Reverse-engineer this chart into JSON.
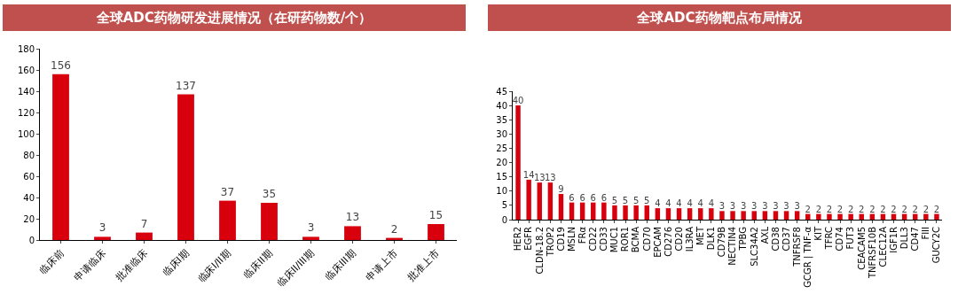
{
  "chart_data": [
    {
      "type": "bar",
      "title": "全球ADC药物研发进展情况（在研药物数/个）",
      "categories": [
        "临床前",
        "申请临床",
        "批准临床",
        "临床I期",
        "临床I/II期",
        "临床II期",
        "临床II/III期",
        "临床III期",
        "申请上市",
        "批准上市"
      ],
      "values": [
        156,
        3,
        7,
        137,
        37,
        35,
        3,
        13,
        2,
        15
      ],
      "color": "#d9000d",
      "ylim": [
        0,
        180
      ],
      "yticks": [
        0,
        20,
        40,
        60,
        80,
        100,
        120,
        140,
        160,
        180
      ],
      "grid": false,
      "data_labels": true
    },
    {
      "type": "bar",
      "title": "全球ADC药物靶点布局情况",
      "categories": [
        "HER2",
        "EGFR",
        "CLDN-18.2",
        "TROP2",
        "CD19",
        "MSLN",
        "FRα",
        "CD22",
        "CD33",
        "MUC1",
        "ROR1",
        "BCMA",
        "CD70",
        "EPCAM",
        "CD276",
        "CD20",
        "IL3RA",
        "MET",
        "DLK1",
        "CD79B",
        "NECTIN4",
        "TPBG",
        "SLC34A2",
        "AXL",
        "CD38",
        "CD37",
        "TNFRSF8",
        "GCGR | TNF-α",
        "KIT",
        "TFRC",
        "CD74",
        "FUT3",
        "CEACAM5",
        "TNFRSF10B",
        "CLEC12A",
        "IGF1R",
        "DLL3",
        "CD47",
        "FIII",
        "GUCY2C"
      ],
      "values": [
        40,
        14,
        13,
        13,
        9,
        6,
        6,
        6,
        6,
        5,
        5,
        5,
        5,
        4,
        4,
        4,
        4,
        4,
        4,
        3,
        3,
        3,
        3,
        3,
        3,
        3,
        3,
        2,
        2,
        2,
        2,
        2,
        2,
        2,
        2,
        2,
        2,
        2,
        2,
        2
      ],
      "color": "#d9000d",
      "ylim": [
        0,
        45
      ],
      "yticks": [
        0,
        5,
        10,
        15,
        20,
        25,
        30,
        35,
        40,
        45
      ],
      "grid": false,
      "data_labels": true
    }
  ]
}
